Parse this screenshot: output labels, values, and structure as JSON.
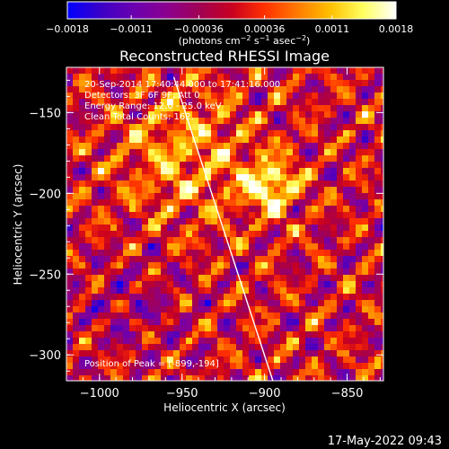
{
  "chart_data": {
    "type": "heatmap",
    "title": "Reconstructed RHESSI Image",
    "xlabel": "Heliocentric X (arcsec)",
    "ylabel": "Heliocentric Y (arcsec)",
    "xlim": [
      -1020,
      -828
    ],
    "ylim": [
      -316,
      -122
    ],
    "x_ticks": [
      {
        "value": -1000,
        "label": "−1000"
      },
      {
        "value": -950,
        "label": "−950"
      },
      {
        "value": -900,
        "label": "−900"
      },
      {
        "value": -850,
        "label": "−850"
      }
    ],
    "y_ticks": [
      {
        "value": -150,
        "label": "−150"
      },
      {
        "value": -200,
        "label": "−200"
      },
      {
        "value": -250,
        "label": "−250"
      },
      {
        "value": -300,
        "label": "−300"
      }
    ],
    "colorbar": {
      "min": -0.0018,
      "max": 0.0018,
      "ticks": [
        {
          "value": -0.0018,
          "label": "−0.0018"
        },
        {
          "value": -0.0011,
          "label": "−0.0011"
        },
        {
          "value": -0.00036,
          "label": "−0.00036"
        },
        {
          "value": 0.00036,
          "label": "0.00036"
        },
        {
          "value": 0.0011,
          "label": "0.0011"
        },
        {
          "value": 0.0018,
          "label": "0.0018"
        }
      ],
      "colors": [
        "#0000ff",
        "#3a00c8",
        "#6a00b0",
        "#8a0090",
        "#a00055",
        "#c80020",
        "#ff3000",
        "#ff7a00",
        "#ffc000",
        "#ffff60",
        "#ffffff"
      ]
    },
    "info_lines": [
      "20-Sep-2014 17:40:44.000 to 17:41:16.000",
      "Detectors: 3F 6F 9F, Att 0",
      "Energy Range: 12.0 - 25.0 keV",
      "Clean     Total Counts: 162."
    ],
    "peak_text": "Position of Peak = [-899,-194]",
    "peak": [
      -899,
      -194
    ],
    "limb_line": [
      [
        -955,
        -128
      ],
      [
        -895,
        -316
      ]
    ],
    "timestamp": "17-May-2022 09:43"
  },
  "units_label": "(photons cm",
  "units_sup1": "−2",
  "units_mid": " s",
  "units_sup2": "−1",
  "units_end": " asec",
  "units_sup3": "−2",
  "units_close": ")"
}
